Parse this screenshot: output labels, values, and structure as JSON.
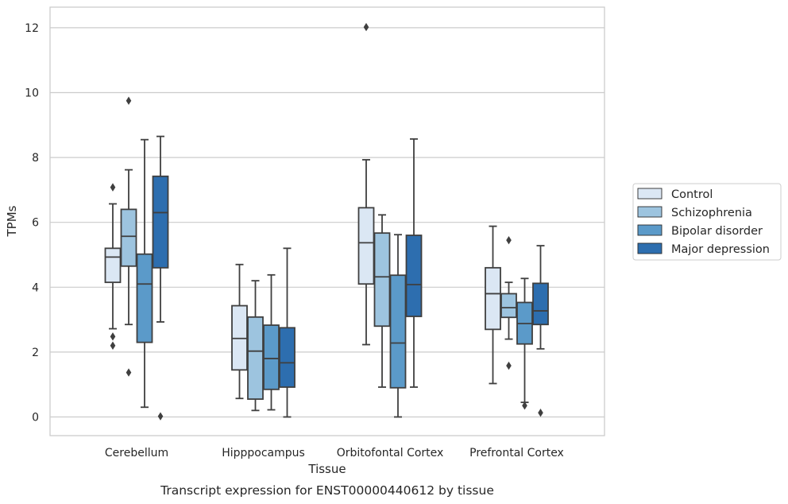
{
  "chart_data": {
    "type": "box",
    "title": "",
    "caption": "Transcript expression for ENST00000440612 by tissue",
    "xlabel": "Tissue",
    "ylabel": "TPMs",
    "ylim": [
      -0.6,
      12.6
    ],
    "yticks": [
      0,
      2,
      4,
      6,
      8,
      10,
      12
    ],
    "grid": true,
    "legend_position": "right",
    "categories": [
      "Cerebellum",
      "Hipppocampus",
      "Orbitofontal Cortex",
      "Prefrontal Cortex"
    ],
    "series": [
      {
        "name": "Control",
        "color": "#dbe7f4",
        "boxes": [
          {
            "whisker_low": 2.72,
            "q1": 4.15,
            "median": 4.93,
            "q3": 5.2,
            "whisker_high": 6.57,
            "outliers": [
              7.08,
              2.48,
              2.2
            ]
          },
          {
            "whisker_low": 0.57,
            "q1": 1.45,
            "median": 2.42,
            "q3": 3.43,
            "whisker_high": 4.7,
            "outliers": []
          },
          {
            "whisker_low": 2.23,
            "q1": 4.1,
            "median": 5.37,
            "q3": 6.45,
            "whisker_high": 7.93,
            "outliers": [
              12.02
            ]
          },
          {
            "whisker_low": 1.03,
            "q1": 2.7,
            "median": 3.8,
            "q3": 4.6,
            "whisker_high": 5.88,
            "outliers": []
          }
        ]
      },
      {
        "name": "Schizophrenia",
        "color": "#9dc4df",
        "boxes": [
          {
            "whisker_low": 2.85,
            "q1": 4.65,
            "median": 5.57,
            "q3": 6.4,
            "whisker_high": 7.62,
            "outliers": [
              9.75,
              1.37
            ]
          },
          {
            "whisker_low": 0.2,
            "q1": 0.55,
            "median": 2.03,
            "q3": 3.08,
            "whisker_high": 4.2,
            "outliers": []
          },
          {
            "whisker_low": 0.92,
            "q1": 2.8,
            "median": 4.32,
            "q3": 5.67,
            "whisker_high": 6.23,
            "outliers": []
          },
          {
            "whisker_low": 2.4,
            "q1": 3.07,
            "median": 3.37,
            "q3": 3.8,
            "whisker_high": 4.15,
            "outliers": [
              5.45,
              1.58
            ]
          }
        ]
      },
      {
        "name": "Bipolar disorder",
        "color": "#5b9ac9",
        "boxes": [
          {
            "whisker_low": 0.3,
            "q1": 2.3,
            "median": 4.1,
            "q3": 5.02,
            "whisker_high": 8.55,
            "outliers": []
          },
          {
            "whisker_low": 0.22,
            "q1": 0.85,
            "median": 1.8,
            "q3": 2.83,
            "whisker_high": 4.38,
            "outliers": []
          },
          {
            "whisker_low": 0.0,
            "q1": 0.9,
            "median": 2.28,
            "q3": 4.37,
            "whisker_high": 5.62,
            "outliers": []
          },
          {
            "whisker_low": 0.45,
            "q1": 2.25,
            "median": 2.88,
            "q3": 3.53,
            "whisker_high": 4.27,
            "outliers": [
              0.35
            ]
          }
        ]
      },
      {
        "name": "Major depression",
        "color": "#2d6eaf",
        "boxes": [
          {
            "whisker_low": 2.93,
            "q1": 4.6,
            "median": 6.3,
            "q3": 7.42,
            "whisker_high": 8.65,
            "outliers": [
              0.02
            ]
          },
          {
            "whisker_low": 0.0,
            "q1": 0.92,
            "median": 1.67,
            "q3": 2.75,
            "whisker_high": 5.2,
            "outliers": []
          },
          {
            "whisker_low": 0.92,
            "q1": 3.1,
            "median": 4.08,
            "q3": 5.6,
            "whisker_high": 8.57,
            "outliers": []
          },
          {
            "whisker_low": 2.1,
            "q1": 2.85,
            "median": 3.27,
            "q3": 4.12,
            "whisker_high": 5.28,
            "outliers": [
              0.13
            ]
          }
        ]
      }
    ],
    "colors": {
      "grid": "#cccccc",
      "frame": "#cccccc",
      "box_edge": "#3f3f3f"
    }
  }
}
